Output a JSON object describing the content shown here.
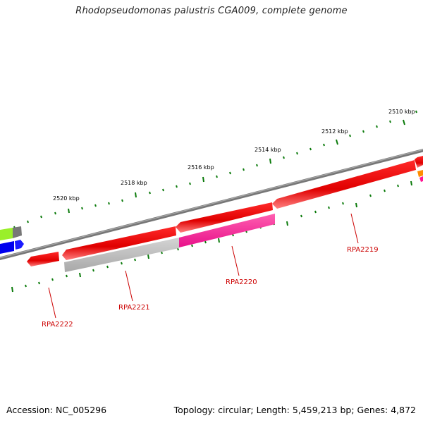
{
  "title": "Rhodopseudomonas palustris CGA009, complete genome",
  "footer": {
    "accession": "Accession: NC_005296",
    "summary": "Topology: circular; Length: 5,459,213 bp; Genes: 4,872"
  },
  "scale_labels": [
    "2520 kbp",
    "2518 kbp",
    "2516 kbp",
    "2514 kbp",
    "2512 kbp",
    "2510 kbp"
  ],
  "gene_labels": [
    "RPA2222",
    "RPA2221",
    "RPA2220",
    "RPA2219"
  ],
  "colors": {
    "backbone": "#7a7a7a",
    "gene_red": "#ff0000",
    "gene_pink": "#ff1493",
    "gene_gray": "#bdbdbd",
    "gene_green": "#9aef2a",
    "gene_blue": "#0000ff",
    "gene_orange": "#ff8c00",
    "tick_green": "#006400",
    "label_red": "#cc0000"
  }
}
